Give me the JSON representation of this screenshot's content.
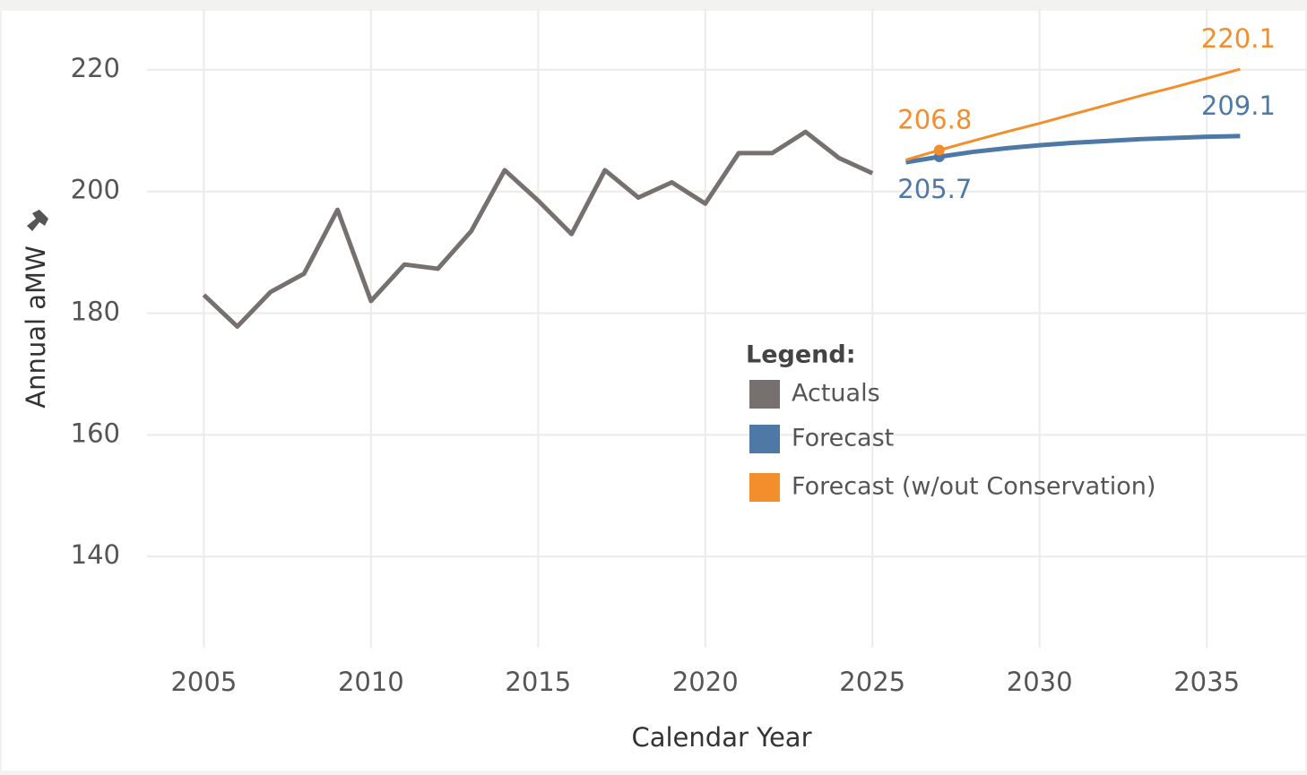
{
  "chart_data": {
    "type": "line",
    "xlabel": "Calendar Year",
    "ylabel": "Annual aMW",
    "legend_title": "Legend:",
    "xlim": [
      2003.3,
      2038
    ],
    "xticks": [
      2005,
      2010,
      2015,
      2020,
      2025,
      2030,
      2035
    ],
    "ylim": [
      125,
      230
    ],
    "yticks": [
      140,
      160,
      180,
      200,
      220
    ],
    "grid": true,
    "series": [
      {
        "name": "Actuals",
        "color": "#76706e",
        "x": [
          2005,
          2006,
          2007,
          2008,
          2009,
          2010,
          2011,
          2012,
          2013,
          2014,
          2015,
          2016,
          2017,
          2018,
          2019,
          2020,
          2021,
          2022,
          2023,
          2024,
          2025
        ],
        "values": [
          183,
          177.8,
          183.5,
          186.5,
          197,
          182,
          188,
          187.3,
          193.5,
          203.5,
          198.5,
          193,
          203.5,
          199,
          201.5,
          198,
          206.3,
          206.3,
          209.8,
          205.5,
          203
        ]
      },
      {
        "name": "Forecast",
        "color": "#4e79a7",
        "x": [
          2026,
          2027,
          2028,
          2029,
          2030,
          2031,
          2032,
          2033,
          2034,
          2035,
          2036
        ],
        "values": [
          204.8,
          205.7,
          206.5,
          207.1,
          207.6,
          208,
          208.3,
          208.6,
          208.8,
          209,
          209.1
        ],
        "value_labels": [
          null,
          "205.7",
          null,
          null,
          null,
          null,
          null,
          null,
          null,
          null,
          "209.1"
        ]
      },
      {
        "name": "Forecast (w/out Conservation)",
        "color": "#f28e2b",
        "x": [
          2026,
          2027,
          2028,
          2029,
          2030,
          2031,
          2032,
          2033,
          2034,
          2035,
          2036
        ],
        "values": [
          205.2,
          206.8,
          208.3,
          209.8,
          211.2,
          212.7,
          214.2,
          215.7,
          217.1,
          218.6,
          220.1
        ],
        "value_labels": [
          null,
          "206.8",
          null,
          null,
          null,
          null,
          null,
          null,
          null,
          null,
          "220.1"
        ]
      }
    ]
  }
}
